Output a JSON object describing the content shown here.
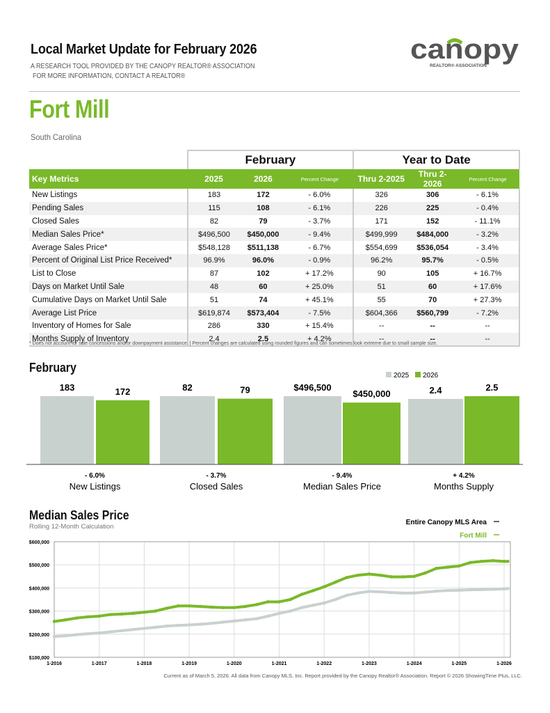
{
  "header": {
    "title": "Local Market Update for February 2026",
    "subtitle1": "A RESEARCH TOOL PROVIDED BY THE CANOPY REALTOR® ASSOCIATION",
    "subtitle2": "FOR MORE INFORMATION, CONTACT A REALTOR®",
    "logo_text": "canopy",
    "logo_subtext": "REALTOR® ASSOCIATION"
  },
  "area": {
    "name": "Fort Mill",
    "state": "South Carolina"
  },
  "colors": {
    "green": "#7ab929",
    "gray": "#c9d1cf"
  },
  "table": {
    "group_headers": [
      "February",
      "Year to Date"
    ],
    "columns": [
      "Key Metrics",
      "2025",
      "2026",
      "Percent Change",
      "Thru 2-2025",
      "Thru 2-2026",
      "Percent Change"
    ],
    "rows": [
      [
        "New Listings",
        "183",
        "172",
        "- 6.0%",
        "326",
        "306",
        "- 6.1%"
      ],
      [
        "Pending Sales",
        "115",
        "108",
        "- 6.1%",
        "226",
        "225",
        "- 0.4%"
      ],
      [
        "Closed Sales",
        "82",
        "79",
        "- 3.7%",
        "171",
        "152",
        "- 11.1%"
      ],
      [
        "Median Sales Price*",
        "$496,500",
        "$450,000",
        "- 9.4%",
        "$499,999",
        "$484,000",
        "- 3.2%"
      ],
      [
        "Average Sales Price*",
        "$548,128",
        "$511,138",
        "- 6.7%",
        "$554,699",
        "$536,054",
        "- 3.4%"
      ],
      [
        "Percent of Original List Price Received*",
        "96.9%",
        "96.0%",
        "- 0.9%",
        "96.2%",
        "95.7%",
        "- 0.5%"
      ],
      [
        "List to Close",
        "87",
        "102",
        "+ 17.2%",
        "90",
        "105",
        "+ 16.7%"
      ],
      [
        "Days on Market Until Sale",
        "48",
        "60",
        "+ 25.0%",
        "51",
        "60",
        "+ 17.6%"
      ],
      [
        "Cumulative Days on Market Until Sale",
        "51",
        "74",
        "+ 45.1%",
        "55",
        "70",
        "+ 27.3%"
      ],
      [
        "Average List Price",
        "$619,874",
        "$573,404",
        "- 7.5%",
        "$604,366",
        "$560,799",
        "- 7.2%"
      ],
      [
        "Inventory of Homes for Sale",
        "286",
        "330",
        "+ 15.4%",
        "--",
        "--",
        "--"
      ],
      [
        "Months Supply of Inventory",
        "2.4",
        "2.5",
        "+ 4.2%",
        "--",
        "--",
        "--"
      ]
    ],
    "footnote": "* Does not account for sale concessions and/or downpayment assistance.  |  Percent changes are calculated using rounded figures and can sometimes look extreme due to small sample size."
  },
  "chart_data": [
    {
      "type": "bar",
      "title": "February",
      "legend": [
        "2025",
        "2026"
      ],
      "legend_position": "top-right",
      "categories": [
        "New Listings",
        "Closed Sales",
        "Median Sales Price",
        "Months Supply"
      ],
      "series": [
        {
          "name": "2025",
          "values": [
            183,
            82,
            496500,
            2.4
          ],
          "labels": [
            "183",
            "82",
            "$496,500",
            "2.4"
          ]
        },
        {
          "name": "2026",
          "values": [
            172,
            79,
            450000,
            2.5
          ],
          "labels": [
            "172",
            "79",
            "$450,000",
            "2.5"
          ]
        }
      ],
      "changes": [
        "- 6.0%",
        "- 3.7%",
        "- 9.4%",
        "+ 4.2%"
      ]
    },
    {
      "type": "line",
      "title": "Median Sales Price",
      "subtitle": "Rolling 12-Month Calculation",
      "legend_position": "top-right",
      "grid": true,
      "ylim": [
        100000,
        600000
      ],
      "yticks": [
        "$100,000",
        "$200,000",
        "$300,000",
        "$400,000",
        "$500,000",
        "$600,000"
      ],
      "xticks": [
        "1-2016",
        "1-2017",
        "1-2018",
        "1-2019",
        "1-2020",
        "1-2021",
        "1-2022",
        "1-2023",
        "1-2024",
        "1-2025",
        "1-2026"
      ],
      "x": [
        "2016-01",
        "2016-04",
        "2016-07",
        "2016-10",
        "2017-01",
        "2017-04",
        "2017-07",
        "2017-10",
        "2018-01",
        "2018-04",
        "2018-07",
        "2018-10",
        "2019-01",
        "2019-04",
        "2019-07",
        "2019-10",
        "2020-01",
        "2020-04",
        "2020-07",
        "2020-10",
        "2021-01",
        "2021-04",
        "2021-07",
        "2021-10",
        "2022-01",
        "2022-04",
        "2022-07",
        "2022-10",
        "2023-01",
        "2023-04",
        "2023-07",
        "2023-10",
        "2024-01",
        "2024-04",
        "2024-07",
        "2024-10",
        "2025-01",
        "2025-04",
        "2025-07",
        "2025-10",
        "2026-01",
        "2026-02"
      ],
      "series": [
        {
          "name": "Entire Canopy MLS Area",
          "color": "#c9d1cf",
          "values": [
            190000,
            193000,
            198000,
            202000,
            205000,
            210000,
            215000,
            220000,
            225000,
            230000,
            235000,
            238000,
            240000,
            243000,
            247000,
            252000,
            257000,
            262000,
            267000,
            278000,
            290000,
            300000,
            315000,
            325000,
            335000,
            350000,
            368000,
            378000,
            385000,
            383000,
            380000,
            378000,
            378000,
            382000,
            386000,
            389000,
            390000,
            392000,
            393000,
            394000,
            396000,
            397000
          ]
        },
        {
          "name": "Fort Mill",
          "color": "#7ab929",
          "values": [
            255000,
            262000,
            270000,
            275000,
            278000,
            285000,
            287000,
            290000,
            295000,
            300000,
            312000,
            322000,
            322000,
            320000,
            317000,
            315000,
            315000,
            320000,
            328000,
            340000,
            340000,
            350000,
            372000,
            388000,
            405000,
            425000,
            445000,
            455000,
            460000,
            455000,
            448000,
            448000,
            450000,
            465000,
            485000,
            490000,
            495000,
            510000,
            515000,
            518000,
            515000,
            515000
          ]
        }
      ]
    }
  ],
  "footer": "Current as of March 5, 2026. All data from Canopy MLS, Inc. Report provided by the Canopy Realtor® Association. Report © 2026 ShowingTime Plus, LLC."
}
